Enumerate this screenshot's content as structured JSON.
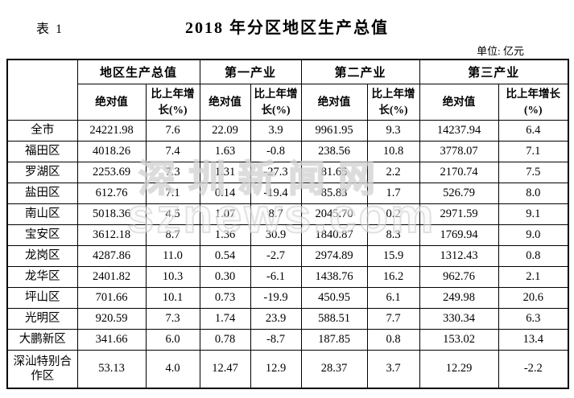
{
  "header": {
    "table_label": "表 1",
    "title": "2018 年分区地区生产总值",
    "unit": "单位: 亿元"
  },
  "watermark": {
    "line1": "深圳新闻网",
    "line2": "sznews.com"
  },
  "table": {
    "corner": "",
    "col_groups": [
      {
        "label": "地区生产总值"
      },
      {
        "label": "第一产业"
      },
      {
        "label": "第二产业"
      },
      {
        "label": "第三产业"
      }
    ],
    "sub_headers": {
      "abs": "绝对值",
      "growth": "比上年增长(%)"
    },
    "rows": [
      {
        "region": "全市",
        "values": [
          "24221.98",
          "7.6",
          "22.09",
          "3.9",
          "9961.95",
          "9.3",
          "14237.94",
          "6.4"
        ]
      },
      {
        "region": "福田区",
        "values": [
          "4018.26",
          "7.4",
          "1.63",
          "-0.8",
          "238.56",
          "10.8",
          "3778.07",
          "7.1"
        ]
      },
      {
        "region": "罗湖区",
        "values": [
          "2253.69",
          "7.3",
          "1.31",
          "-27.3",
          "81.65",
          "2.2",
          "2170.74",
          "7.5"
        ]
      },
      {
        "region": "盐田区",
        "values": [
          "612.76",
          "7.1",
          "0.14",
          "-19.4",
          "85.83",
          "1.7",
          "526.79",
          "8.0"
        ]
      },
      {
        "region": "南山区",
        "values": [
          "5018.36",
          "4.5",
          "1.07",
          "8.7",
          "2045.70",
          "0.2",
          "2971.59",
          "9.1"
        ]
      },
      {
        "region": "宝安区",
        "values": [
          "3612.18",
          "8.7",
          "1.36",
          "30.9",
          "1840.87",
          "8.3",
          "1769.94",
          "9.0"
        ]
      },
      {
        "region": "龙岗区",
        "values": [
          "4287.86",
          "11.0",
          "0.54",
          "-2.7",
          "2974.89",
          "15.9",
          "1312.43",
          "0.8"
        ]
      },
      {
        "region": "龙华区",
        "values": [
          "2401.82",
          "10.3",
          "0.30",
          "-6.1",
          "1438.76",
          "16.2",
          "962.76",
          "2.1"
        ]
      },
      {
        "region": "坪山区",
        "values": [
          "701.66",
          "10.1",
          "0.73",
          "-19.9",
          "450.95",
          "6.1",
          "249.98",
          "20.6"
        ]
      },
      {
        "region": "光明区",
        "values": [
          "920.59",
          "7.3",
          "1.74",
          "23.9",
          "588.51",
          "7.7",
          "330.34",
          "6.3"
        ]
      },
      {
        "region": "大鹏新区",
        "values": [
          "341.66",
          "6.0",
          "0.78",
          "-8.7",
          "187.85",
          "0.8",
          "153.02",
          "13.4"
        ]
      },
      {
        "region": "深汕特别合作区",
        "values": [
          "53.13",
          "4.0",
          "12.47",
          "12.9",
          "28.37",
          "3.7",
          "12.29",
          "-2.2"
        ]
      }
    ]
  }
}
